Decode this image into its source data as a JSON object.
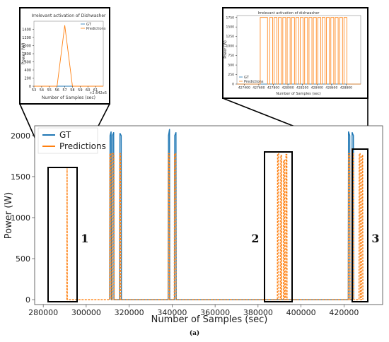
{
  "chart_data": [
    {
      "type": "line",
      "xlabel": "Number of Samples (sec)",
      "ylabel": "Power (W)",
      "xlim": [
        276000,
        438000
      ],
      "ylim": [
        -60,
        2120
      ],
      "xticks": [
        "280000",
        "300000",
        "320000",
        "340000",
        "360000",
        "380000",
        "400000",
        "420000"
      ],
      "yticks": [
        "0",
        "500",
        "1000",
        "1500",
        "2000"
      ],
      "legend": {
        "position": "top-left",
        "entries": [
          "GT",
          "Predictions"
        ]
      },
      "series": [
        {
          "name": "GT",
          "color": "#1f77b4",
          "points": [
            [
              311000,
              0
            ],
            [
              311100,
              2000
            ],
            [
              311600,
              2050
            ],
            [
              311700,
              0
            ],
            [
              312100,
              0
            ],
            [
              312200,
              2000
            ],
            [
              312800,
              2040
            ],
            [
              312900,
              0
            ],
            [
              315600,
              0
            ],
            [
              315700,
              2030
            ],
            [
              316300,
              2000
            ],
            [
              316400,
              0
            ],
            [
              338200,
              0
            ],
            [
              338300,
              2000
            ],
            [
              338800,
              2080
            ],
            [
              338900,
              0
            ],
            [
              341100,
              0
            ],
            [
              341200,
              2000
            ],
            [
              341800,
              2040
            ],
            [
              341900,
              0
            ],
            [
              422000,
              0
            ],
            [
              422100,
              2050
            ],
            [
              422700,
              2000
            ],
            [
              422800,
              0
            ],
            [
              423700,
              0
            ],
            [
              423800,
              2040
            ],
            [
              424400,
              2000
            ],
            [
              424500,
              0
            ]
          ]
        },
        {
          "name": "Predictions",
          "color": "#ff7f0e",
          "points": [
            [
              291000,
              0
            ],
            [
              291100,
              1600
            ],
            [
              291200,
              0
            ],
            [
              310900,
              0
            ],
            [
              311000,
              1780
            ],
            [
              311500,
              1780
            ],
            [
              311600,
              0
            ],
            [
              312100,
              0
            ],
            [
              312200,
              1780
            ],
            [
              312900,
              1780
            ],
            [
              313000,
              0
            ],
            [
              315500,
              0
            ],
            [
              315600,
              1780
            ],
            [
              316000,
              1780
            ],
            [
              316100,
              0
            ],
            [
              338100,
              0
            ],
            [
              338200,
              1780
            ],
            [
              338700,
              1780
            ],
            [
              338800,
              0
            ],
            [
              341000,
              0
            ],
            [
              341100,
              1780
            ],
            [
              341700,
              1780
            ],
            [
              341800,
              0
            ],
            [
              389000,
              0
            ],
            [
              389100,
              1780
            ],
            [
              389600,
              1780
            ],
            [
              389700,
              0
            ],
            [
              390500,
              0
            ],
            [
              390600,
              1760
            ],
            [
              390900,
              1760
            ],
            [
              391000,
              0
            ],
            [
              391800,
              0
            ],
            [
              391900,
              1700
            ],
            [
              392300,
              1700
            ],
            [
              392400,
              0
            ],
            [
              392900,
              0
            ],
            [
              393000,
              1770
            ],
            [
              393400,
              1770
            ],
            [
              393500,
              0
            ],
            [
              422000,
              0
            ],
            [
              422100,
              1780
            ],
            [
              422700,
              1780
            ],
            [
              422800,
              0
            ],
            [
              423700,
              0
            ],
            [
              423800,
              1780
            ],
            [
              424400,
              1780
            ],
            [
              424500,
              0
            ],
            [
              427000,
              0
            ],
            [
              427100,
              1780
            ],
            [
              427500,
              1780
            ],
            [
              427600,
              0
            ],
            [
              428200,
              0
            ],
            [
              428300,
              1760
            ],
            [
              428700,
              1760
            ],
            [
              428800,
              0
            ]
          ]
        }
      ]
    },
    {
      "type": "line",
      "title": "Irrelevant activation of Dishwasher",
      "xlabel": "Number of Samples (sec)",
      "ylabel": "Power (W)",
      "offset_text": "+2.642e5",
      "xlim": [
        53,
        62
      ],
      "ylim": [
        0,
        1600
      ],
      "xticks": [
        "53",
        "54",
        "55",
        "56",
        "57",
        "58",
        "59",
        "60",
        "61"
      ],
      "yticks": [
        "0",
        "200",
        "400",
        "600",
        "800",
        "1000",
        "1200",
        "1400"
      ],
      "legend": {
        "position": "top-right",
        "entries": [
          "GT",
          "Predictions"
        ]
      },
      "series": [
        {
          "name": "GT",
          "color": "#1f77b4",
          "points": [
            [
              53,
              0
            ],
            [
              62,
              0
            ]
          ]
        },
        {
          "name": "Predictions",
          "color": "#ff7f0e",
          "points": [
            [
              53,
              0
            ],
            [
              56,
              0
            ],
            [
              57,
              1500
            ],
            [
              58,
              0
            ],
            [
              62,
              0
            ]
          ]
        }
      ]
    },
    {
      "type": "line",
      "title": "Irrelevant activation of dishwasher",
      "xlabel": "Number of Samples (sec)",
      "ylabel": "Power (W)",
      "xlim": [
        427300,
        429000
      ],
      "ylim": [
        0,
        1800
      ],
      "xticks": [
        "427400",
        "427600",
        "427800",
        "428000",
        "428200",
        "428400",
        "428600",
        "428800"
      ],
      "yticks": [
        "0",
        "250",
        "500",
        "750",
        "1000",
        "1250",
        "1500",
        "1750"
      ],
      "legend": {
        "position": "bottom-left",
        "entries": [
          "GT",
          "Predictions"
        ]
      },
      "series": [
        {
          "name": "GT",
          "color": "#1f77b4",
          "points": [
            [
              427300,
              0
            ],
            [
              429000,
              0
            ]
          ]
        },
        {
          "name": "Predictions",
          "color": "#ff7f0e",
          "pulses": [
            [
              427620,
              427720
            ],
            [
              427750,
              427790
            ],
            [
              427810,
              427850
            ],
            [
              427870,
              427910
            ],
            [
              427930,
              427970
            ],
            [
              427990,
              428030
            ],
            [
              428050,
              428090
            ],
            [
              428110,
              428150
            ],
            [
              428170,
              428210
            ],
            [
              428230,
              428270
            ],
            [
              428290,
              428330
            ],
            [
              428350,
              428390
            ],
            [
              428410,
              428450
            ],
            [
              428470,
              428510
            ],
            [
              428530,
              428570
            ],
            [
              428590,
              428630
            ],
            [
              428650,
              428690
            ],
            [
              428710,
              428750
            ],
            [
              428770,
              428810
            ]
          ],
          "level": 1750
        }
      ]
    }
  ],
  "annotations": {
    "region_1": "1",
    "region_2": "2",
    "region_3": "3",
    "caption": "(a)"
  }
}
